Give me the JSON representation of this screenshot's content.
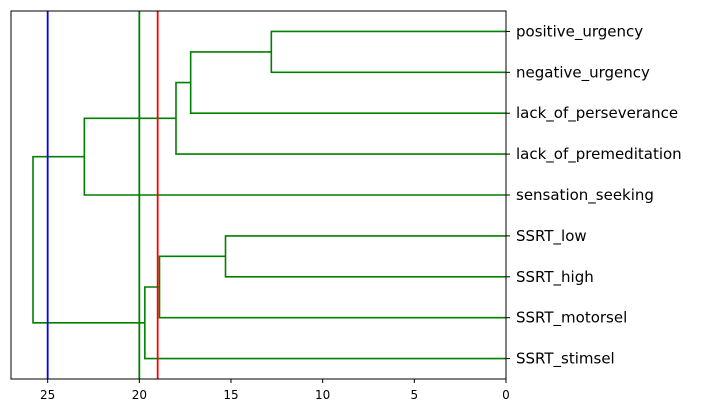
{
  "chart_data": {
    "type": "dendrogram",
    "orientation": "left",
    "xlim": [
      27,
      0
    ],
    "xticks": [
      25,
      20,
      15,
      10,
      5,
      0
    ],
    "leaves": [
      "positive_urgency",
      "negative_urgency",
      "lack_of_perseverance",
      "lack_of_premeditation",
      "sensation_seeking",
      "SSRT_low",
      "SSRT_high",
      "SSRT_motorsel",
      "SSRT_stimsel"
    ],
    "links": [
      {
        "from": [
          "positive_urgency",
          "negative_urgency"
        ],
        "height": 12.8,
        "color": "#008000"
      },
      {
        "from": [
          "c1",
          "lack_of_perseverance"
        ],
        "height": 17.2,
        "color": "#008000",
        "id": "c2"
      },
      {
        "from": [
          "c2",
          "lack_of_premeditation"
        ],
        "height": 18.0,
        "color": "#008000",
        "id": "c3"
      },
      {
        "from": [
          "c3",
          "sensation_seeking"
        ],
        "height": 23.0,
        "color": "#008000",
        "id": "c4"
      },
      {
        "from": [
          "SSRT_low",
          "SSRT_high"
        ],
        "height": 15.3,
        "color": "#008000",
        "id": "c5"
      },
      {
        "from": [
          "c5",
          "SSRT_motorsel"
        ],
        "height": 18.9,
        "color": "#008000",
        "id": "c6"
      },
      {
        "from": [
          "c6",
          "SSRT_stimsel"
        ],
        "height": 19.7,
        "color": "#008000",
        "id": "c7"
      },
      {
        "from": [
          "c4",
          "c7"
        ],
        "height": 25.8,
        "color": "#008000",
        "id": "c8"
      }
    ],
    "cut_lines": [
      {
        "value": 25,
        "color": "#0000ff"
      },
      {
        "value": 20,
        "color": "#008000"
      },
      {
        "value": 19,
        "color": "#ff0000"
      }
    ]
  }
}
